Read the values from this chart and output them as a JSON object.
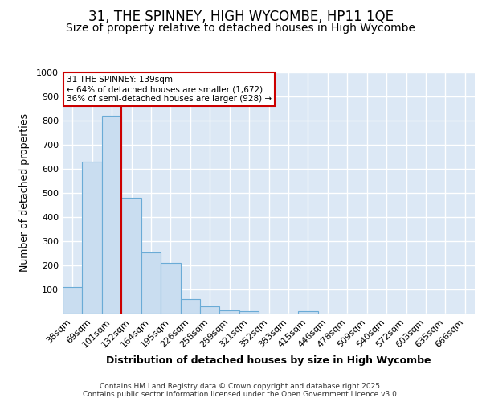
{
  "title": "31, THE SPINNEY, HIGH WYCOMBE, HP11 1QE",
  "subtitle": "Size of property relative to detached houses in High Wycombe",
  "xlabel": "Distribution of detached houses by size in High Wycombe",
  "ylabel": "Number of detached properties",
  "bar_labels": [
    "38sqm",
    "69sqm",
    "101sqm",
    "132sqm",
    "164sqm",
    "195sqm",
    "226sqm",
    "258sqm",
    "289sqm",
    "321sqm",
    "352sqm",
    "383sqm",
    "415sqm",
    "446sqm",
    "478sqm",
    "509sqm",
    "540sqm",
    "572sqm",
    "603sqm",
    "635sqm",
    "666sqm"
  ],
  "bar_values": [
    110,
    630,
    820,
    480,
    255,
    210,
    60,
    30,
    15,
    10,
    0,
    0,
    10,
    0,
    0,
    0,
    0,
    0,
    0,
    0,
    0
  ],
  "bar_color": "#c9ddf0",
  "bar_edge_color": "#6aabd6",
  "vline_x_idx": 3,
  "vline_color": "#cc0000",
  "ann_title": "31 THE SPINNEY: 139sqm",
  "ann_line2": "← 64% of detached houses are smaller (1,672)",
  "ann_line3": "36% of semi-detached houses are larger (928) →",
  "annotation_box_color": "#ffffff",
  "annotation_box_edge": "#cc0000",
  "ylim": [
    0,
    1000
  ],
  "yticks": [
    0,
    100,
    200,
    300,
    400,
    500,
    600,
    700,
    800,
    900,
    1000
  ],
  "footer_line1": "Contains HM Land Registry data © Crown copyright and database right 2025.",
  "footer_line2": "Contains public sector information licensed under the Open Government Licence v3.0.",
  "bg_color": "#dce8f5",
  "grid_color": "#ffffff",
  "fig_color": "#ffffff",
  "title_fontsize": 12,
  "subtitle_fontsize": 10,
  "tick_label_fontsize": 8,
  "axis_label_fontsize": 9
}
